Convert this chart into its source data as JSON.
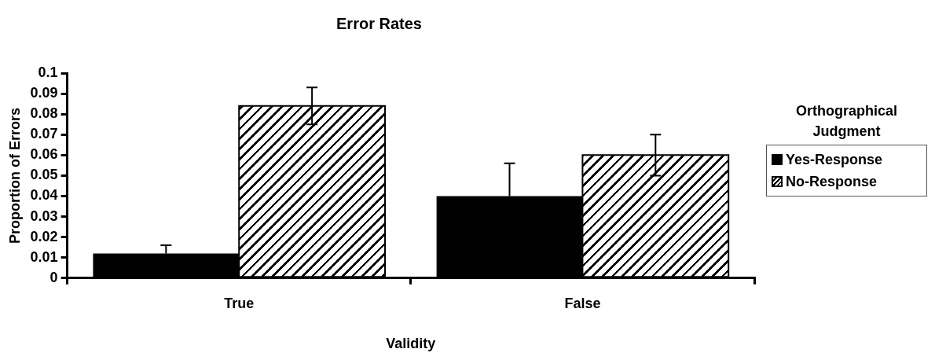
{
  "chart_data": {
    "type": "bar",
    "title": "Error Rates",
    "xlabel": "Validity",
    "ylabel": "Proportion of Errors",
    "legend_title": "Orthographical Judgment",
    "legend": "right",
    "categories": [
      "True",
      "False"
    ],
    "series": [
      {
        "name": "Yes-Response",
        "color": "#000000",
        "values": [
          0.012,
          0.04
        ],
        "errors": [
          0.004,
          0.016
        ]
      },
      {
        "name": "No-Response",
        "color": "#ffffff",
        "values": [
          0.084,
          0.06
        ],
        "errors": [
          0.009,
          0.01
        ]
      }
    ],
    "ylim": [
      0,
      0.1
    ],
    "yticks": [
      0,
      0.01,
      0.02,
      0.03,
      0.04,
      0.05,
      0.06,
      0.07,
      0.08,
      0.09,
      0.1
    ],
    "grid": false
  }
}
